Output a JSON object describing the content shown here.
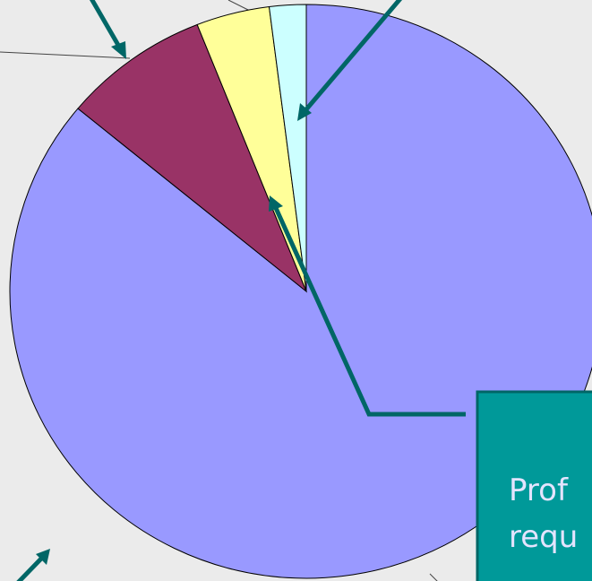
{
  "chart_data": {
    "type": "pie",
    "categories": [
      null,
      null,
      null,
      null
    ],
    "values": [
      86,
      8,
      4,
      2
    ],
    "colors": [
      "#9999ff",
      "#993366",
      "#ffff99",
      "#ccffff"
    ],
    "callout": {
      "lines": [
        "Prof",
        "requ"
      ]
    }
  }
}
